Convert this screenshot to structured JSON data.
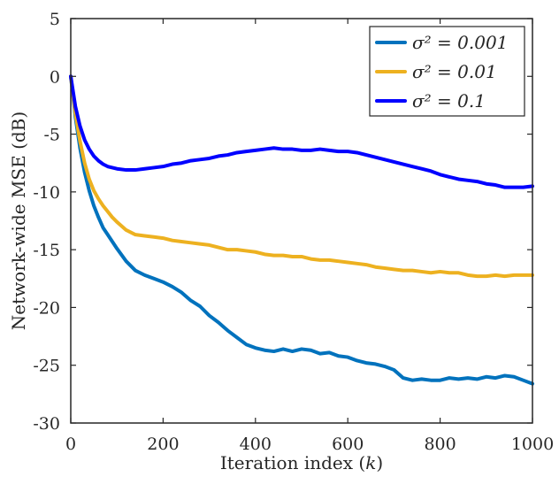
{
  "chart_data": {
    "type": "line",
    "xlabel": "Iteration index (k)",
    "ylabel": "Network-wide MSE (dB)",
    "xlim": [
      0,
      1000
    ],
    "ylim": [
      -30,
      5
    ],
    "xticks": [
      0,
      200,
      400,
      600,
      800,
      1000
    ],
    "xtick_labels": [
      "0",
      "200",
      "400",
      "600",
      "800",
      "1000"
    ],
    "yticks": [
      5,
      0,
      -5,
      -10,
      -15,
      -20,
      -25,
      -30
    ],
    "ytick_labels": [
      "5",
      "0",
      "-5",
      "-10",
      "-15",
      "-20",
      "-25",
      "-30"
    ],
    "grid": false,
    "legend_position": "top-right",
    "series": [
      {
        "name": "σ² = 0.001",
        "color": "#0072BD",
        "x": [
          0,
          10,
          20,
          30,
          40,
          50,
          60,
          70,
          80,
          90,
          100,
          120,
          140,
          160,
          180,
          200,
          220,
          240,
          260,
          280,
          300,
          320,
          340,
          360,
          380,
          400,
          420,
          440,
          460,
          480,
          500,
          520,
          540,
          560,
          580,
          600,
          620,
          640,
          660,
          680,
          700,
          720,
          740,
          760,
          780,
          800,
          820,
          840,
          860,
          880,
          900,
          920,
          940,
          960,
          980,
          1000
        ],
        "values": [
          0,
          -3.5,
          -6.2,
          -8.3,
          -9.9,
          -11.2,
          -12.2,
          -13.1,
          -13.7,
          -14.3,
          -14.9,
          -16.0,
          -16.8,
          -17.2,
          -17.5,
          -17.8,
          -18.2,
          -18.7,
          -19.4,
          -19.9,
          -20.7,
          -21.3,
          -22.0,
          -22.6,
          -23.2,
          -23.5,
          -23.7,
          -23.8,
          -23.6,
          -23.8,
          -23.6,
          -23.7,
          -24.0,
          -23.9,
          -24.2,
          -24.3,
          -24.6,
          -24.8,
          -24.9,
          -25.1,
          -25.4,
          -26.1,
          -26.3,
          -26.2,
          -26.3,
          -26.3,
          -26.1,
          -26.2,
          -26.1,
          -26.2,
          -26.0,
          -26.1,
          -25.9,
          -26.0,
          -26.3,
          -26.6
        ]
      },
      {
        "name": "σ² = 0.01",
        "color": "#EDB120",
        "x": [
          0,
          10,
          20,
          30,
          40,
          50,
          60,
          70,
          80,
          90,
          100,
          120,
          140,
          160,
          180,
          200,
          220,
          240,
          260,
          280,
          300,
          320,
          340,
          360,
          380,
          400,
          420,
          440,
          460,
          480,
          500,
          520,
          540,
          560,
          580,
          600,
          620,
          640,
          660,
          680,
          700,
          720,
          740,
          760,
          780,
          800,
          820,
          840,
          860,
          880,
          900,
          920,
          940,
          960,
          980,
          1000
        ],
        "values": [
          0,
          -3.2,
          -5.6,
          -7.5,
          -8.9,
          -9.9,
          -10.6,
          -11.2,
          -11.7,
          -12.2,
          -12.6,
          -13.3,
          -13.7,
          -13.8,
          -13.9,
          -14.0,
          -14.2,
          -14.3,
          -14.4,
          -14.5,
          -14.6,
          -14.8,
          -15.0,
          -15.0,
          -15.1,
          -15.2,
          -15.4,
          -15.5,
          -15.5,
          -15.6,
          -15.6,
          -15.8,
          -15.9,
          -15.9,
          -16.0,
          -16.1,
          -16.2,
          -16.3,
          -16.5,
          -16.6,
          -16.7,
          -16.8,
          -16.8,
          -16.9,
          -17.0,
          -16.9,
          -17.0,
          -17.0,
          -17.2,
          -17.3,
          -17.3,
          -17.2,
          -17.3,
          -17.2,
          -17.2,
          -17.2
        ]
      },
      {
        "name": "σ² = 0.1",
        "color": "#0000FF",
        "x": [
          0,
          10,
          20,
          30,
          40,
          50,
          60,
          70,
          80,
          90,
          100,
          120,
          140,
          160,
          180,
          200,
          220,
          240,
          260,
          280,
          300,
          320,
          340,
          360,
          380,
          400,
          420,
          440,
          460,
          480,
          500,
          520,
          540,
          560,
          580,
          600,
          620,
          640,
          660,
          680,
          700,
          720,
          740,
          760,
          780,
          800,
          820,
          840,
          860,
          880,
          900,
          920,
          940,
          960,
          980,
          1000
        ],
        "values": [
          0,
          -2.6,
          -4.3,
          -5.5,
          -6.3,
          -6.9,
          -7.3,
          -7.6,
          -7.8,
          -7.9,
          -8.0,
          -8.1,
          -8.1,
          -8.0,
          -7.9,
          -7.8,
          -7.6,
          -7.5,
          -7.3,
          -7.2,
          -7.1,
          -6.9,
          -6.8,
          -6.6,
          -6.5,
          -6.4,
          -6.3,
          -6.2,
          -6.3,
          -6.3,
          -6.4,
          -6.4,
          -6.3,
          -6.4,
          -6.5,
          -6.5,
          -6.6,
          -6.8,
          -7.0,
          -7.2,
          -7.4,
          -7.6,
          -7.8,
          -8.0,
          -8.2,
          -8.5,
          -8.7,
          -8.9,
          -9.0,
          -9.1,
          -9.3,
          -9.4,
          -9.6,
          -9.6,
          -9.6,
          -9.5
        ]
      }
    ]
  }
}
